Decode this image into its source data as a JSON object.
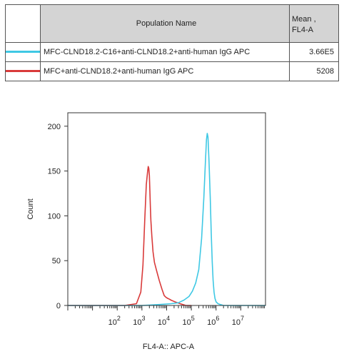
{
  "legend": {
    "header_name": "Population Name",
    "header_stat_line1": "Mean ,",
    "header_stat_line2": "FL4-A",
    "rows": [
      {
        "name": "MFC-CLND18.2-C16+anti-CLND18.2+anti-human IgG APC",
        "value": "3.66E5",
        "color": "#3fc8e4"
      },
      {
        "name": "MFC+anti-CLND18.2+anti-human IgG APC",
        "value": "5208",
        "color": "#d93a3a"
      }
    ]
  },
  "chart_data": {
    "type": "line",
    "xlabel": "FL4-A:: APC-A",
    "ylabel": "Count",
    "x_scale": "log",
    "xlim": [
      1,
      100000000
    ],
    "ylim": [
      0,
      215
    ],
    "x_tick_labels": [
      {
        "base": "10",
        "exp": "2",
        "value": 100
      },
      {
        "base": "10",
        "exp": "3",
        "value": 1000
      },
      {
        "base": "10",
        "exp": "4",
        "value": 10000
      },
      {
        "base": "10",
        "exp": "5",
        "value": 100000
      },
      {
        "base": "10",
        "exp": "6",
        "value": 1000000
      },
      {
        "base": "10",
        "exp": "7",
        "value": 10000000
      }
    ],
    "y_ticks": [
      0,
      50,
      100,
      150,
      200
    ],
    "series": [
      {
        "name": "MFC+anti-CLND18.2+anti-human IgG APC",
        "color": "#d93a3a",
        "x": [
          1,
          200,
          600,
          900,
          1100,
          1300,
          1500,
          1700,
          1800,
          1900,
          2000,
          2100,
          2200,
          2300,
          2500,
          2800,
          3200,
          4000,
          5000,
          6500,
          8000,
          9500,
          11000,
          13000,
          15000,
          18000,
          22000,
          28000,
          35000,
          45000,
          60000,
          100000
        ],
        "y": [
          0,
          0,
          2,
          15,
          45,
          95,
          135,
          150,
          155,
          153,
          145,
          128,
          110,
          95,
          78,
          60,
          48,
          38,
          28,
          18,
          11,
          9,
          8,
          7,
          6,
          5,
          4,
          3,
          2,
          1,
          0,
          0
        ]
      },
      {
        "name": "MFC-CLND18.2-C16+anti-CLND18.2+anti-human IgG APC",
        "color": "#3fc8e4",
        "x": [
          1,
          1000,
          5000,
          15000,
          30000,
          50000,
          80000,
          110000,
          150000,
          200000,
          260000,
          320000,
          370000,
          410000,
          440000,
          470000,
          520000,
          580000,
          640000,
          700000,
          760000,
          830000,
          900000,
          1000000,
          1200000,
          1500000,
          2000000,
          3000000,
          100000000
        ],
        "y": [
          0,
          0,
          1,
          2,
          3,
          6,
          10,
          16,
          25,
          40,
          75,
          120,
          160,
          185,
          192,
          188,
          160,
          120,
          80,
          48,
          28,
          15,
          8,
          4,
          2,
          1,
          0,
          0,
          0
        ]
      }
    ]
  }
}
